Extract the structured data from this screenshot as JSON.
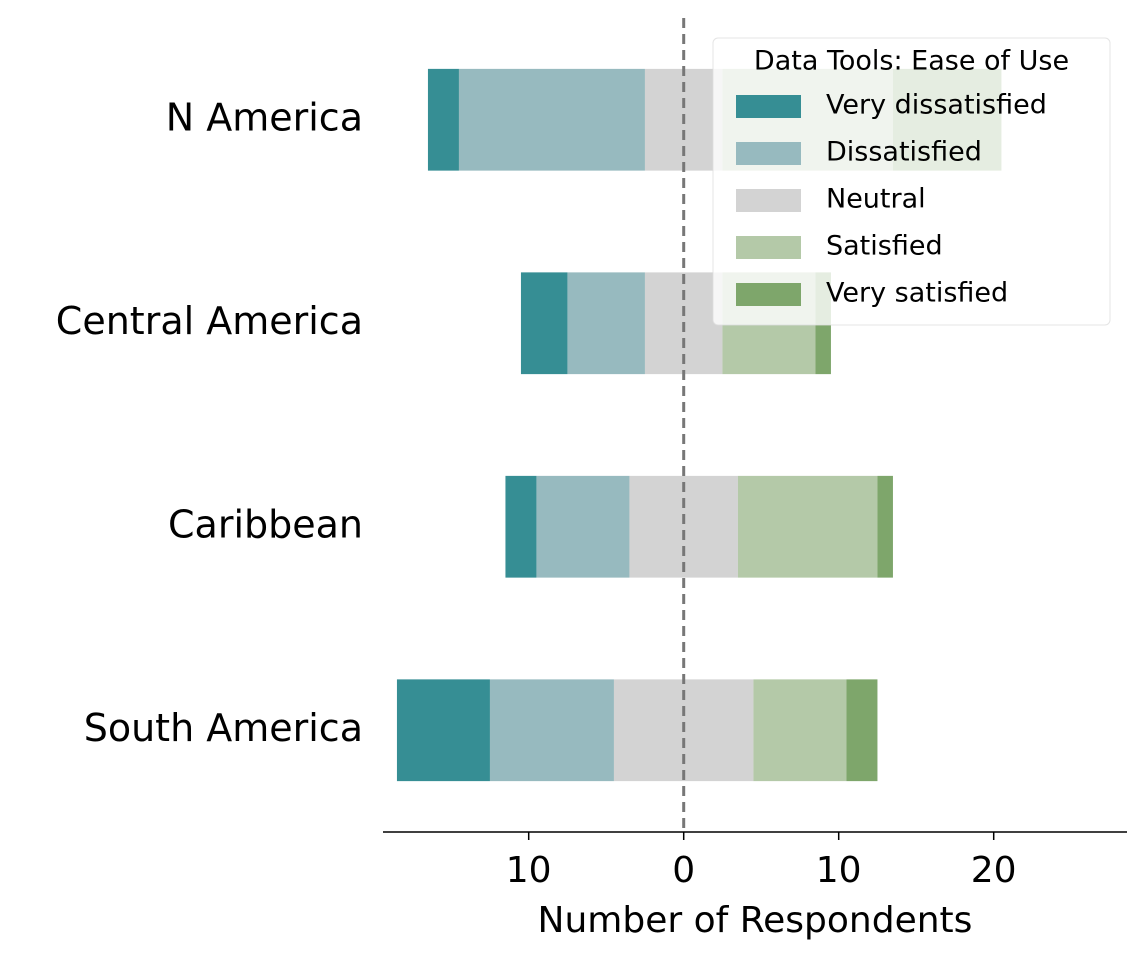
{
  "chart_data": {
    "type": "diverging_bar",
    "orientation": "horizontal",
    "categories": [
      "N America",
      "Central America",
      "Caribbean",
      "South America"
    ],
    "series": [
      {
        "name": "Very dissatisfied",
        "color": "#368e94",
        "values": [
          2,
          3,
          2,
          6
        ]
      },
      {
        "name": "Dissatisfied",
        "color": "#97babf",
        "values": [
          12,
          5,
          6,
          8
        ]
      },
      {
        "name": "Neutral",
        "color": "#d3d3d3",
        "values": [
          5,
          5,
          7,
          9
        ]
      },
      {
        "name": "Satisfied",
        "color": "#b4c9a8",
        "values": [
          11,
          6,
          9,
          6
        ]
      },
      {
        "name": "Very satisfied",
        "color": "#7ea66b",
        "values": [
          7,
          1,
          1,
          2
        ]
      }
    ],
    "center_series": "Neutral",
    "xlabel": "Number of Respondents",
    "legend_title": "Data Tools: Ease of Use",
    "legend_position": "upper right",
    "xlim": [
      -19.4,
      28.6
    ],
    "xticks": [
      {
        "value": -10,
        "label": "10"
      },
      0,
      10,
      20
    ]
  }
}
